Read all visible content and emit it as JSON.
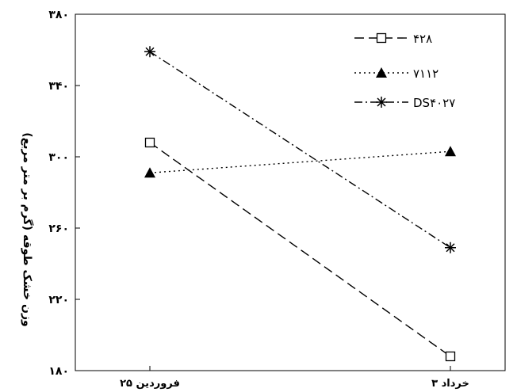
{
  "chart_data": {
    "type": "line",
    "categories": [
      "۲۵ فروردین",
      "۳ خرداد"
    ],
    "ylabel": "وزن خشک طوقه (گرم بر متر مربع)",
    "ylim": [
      180,
      380
    ],
    "yticks": [
      180,
      220,
      260,
      300,
      340,
      380
    ],
    "ytick_labels": [
      "۱۸۰",
      "۲۲۰",
      "۲۶۰",
      "۳۰۰",
      "۳۴۰",
      "۳۸۰"
    ],
    "grid": false,
    "legend_position": "top-right",
    "series": [
      {
        "name": "۴۲۸",
        "values": [
          308,
          188
        ],
        "marker": "open-square",
        "dash": "long-dash",
        "color": "#000000"
      },
      {
        "name": "۷۱۱۲",
        "values": [
          291,
          303
        ],
        "marker": "filled-triangle",
        "dash": "dotted",
        "color": "#000000"
      },
      {
        "name": "DS۴۰۲۷",
        "values": [
          359,
          249
        ],
        "marker": "asterisk",
        "dash": "dash-dot",
        "color": "#000000"
      }
    ]
  }
}
